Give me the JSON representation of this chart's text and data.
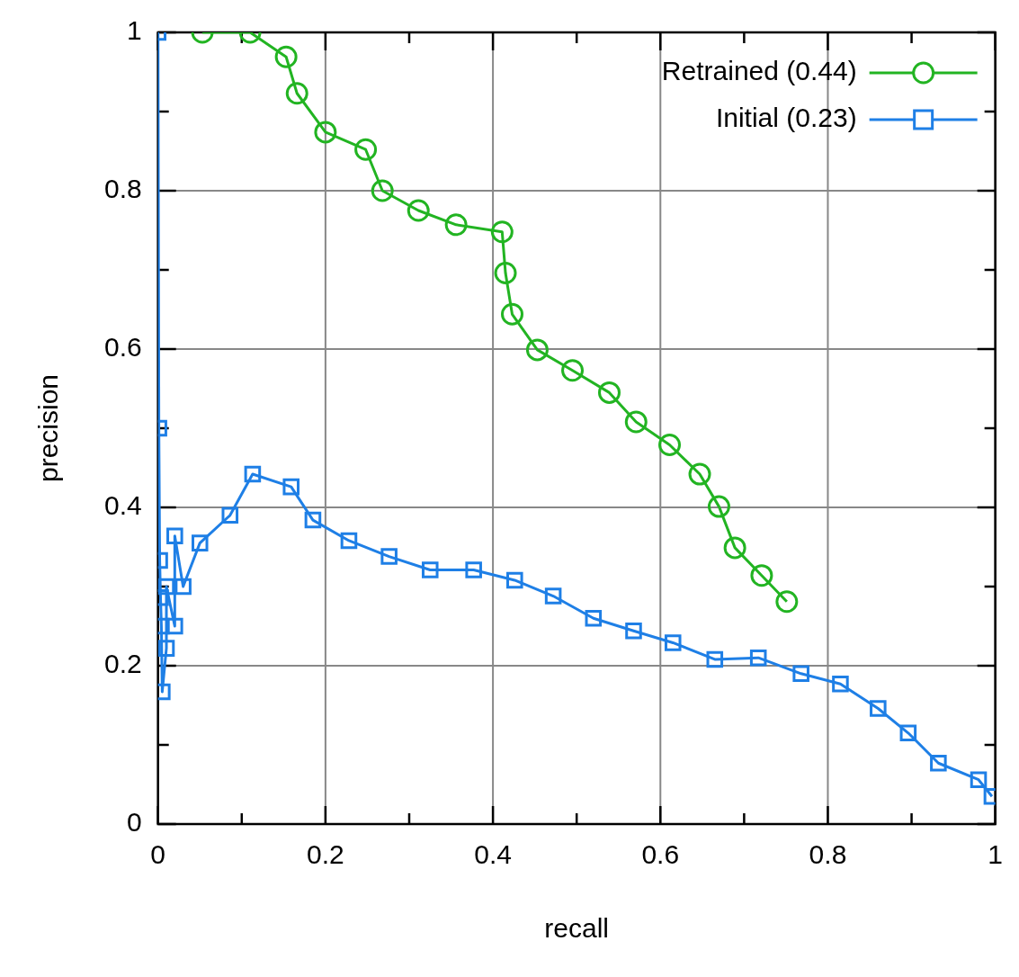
{
  "chart_data": {
    "type": "line",
    "xlabel": "recall",
    "ylabel": "precision",
    "xlim": [
      0,
      1
    ],
    "ylim": [
      0,
      1
    ],
    "xticks": [
      0,
      {
        "value": 0.1,
        "label": null
      },
      0.2,
      {
        "value": 0.3,
        "label": null
      },
      0.4,
      {
        "value": 0.5,
        "label": null
      },
      0.6,
      {
        "value": 0.7,
        "label": null
      },
      0.8,
      {
        "value": 0.9,
        "label": null
      },
      1
    ],
    "yticks": [
      0,
      {
        "value": 0.1,
        "label": null
      },
      0.2,
      {
        "value": 0.3,
        "label": null
      },
      0.4,
      {
        "value": 0.5,
        "label": null
      },
      0.6,
      {
        "value": 0.7,
        "label": null
      },
      0.8,
      {
        "value": 0.9,
        "label": null
      },
      1
    ],
    "grid": true,
    "legend": "top right",
    "line_style": "solid",
    "series": [
      {
        "name": "Retrained (0.44)",
        "color": "#22b422",
        "marker": "circle",
        "x": [
          0.053,
          0.11,
          0.153,
          0.166,
          0.2,
          0.248,
          0.268,
          0.311,
          0.356,
          0.411,
          0.415,
          0.423,
          0.453,
          0.495,
          0.539,
          0.571,
          0.611,
          0.647,
          0.67,
          0.689,
          0.721,
          0.751
        ],
        "values": [
          1,
          1,
          0.969,
          0.923,
          0.874,
          0.852,
          0.8,
          0.775,
          0.757,
          0.748,
          0.696,
          0.644,
          0.599,
          0.573,
          0.545,
          0.508,
          0.479,
          0.442,
          0.401,
          0.349,
          0.314,
          0.281
        ]
      },
      {
        "name": "Initial (0.23)",
        "color": "#1e7fe6",
        "marker": "square",
        "x": [
          0,
          0.001,
          0.002,
          0.003,
          0.004,
          0.005,
          0.01,
          0.01,
          0.02,
          0.02,
          0.03,
          0.05,
          0.086,
          0.113,
          0.159,
          0.185,
          0.228,
          0.276,
          0.325,
          0.377,
          0.426,
          0.472,
          0.52,
          0.568,
          0.615,
          0.665,
          0.717,
          0.768,
          0.815,
          0.86,
          0.896,
          0.932,
          0.98,
          0.996
        ],
        "values": [
          1,
          0.5,
          0.333,
          0.286,
          0.25,
          0.167,
          0.222,
          0.3,
          0.25,
          0.364,
          0.3,
          0.355,
          0.39,
          0.442,
          0.426,
          0.384,
          0.358,
          0.338,
          0.321,
          0.321,
          0.308,
          0.288,
          0.26,
          0.244,
          0.229,
          0.208,
          0.21,
          0.19,
          0.177,
          0.146,
          0.115,
          0.077,
          0.056,
          0.035
        ]
      }
    ]
  }
}
